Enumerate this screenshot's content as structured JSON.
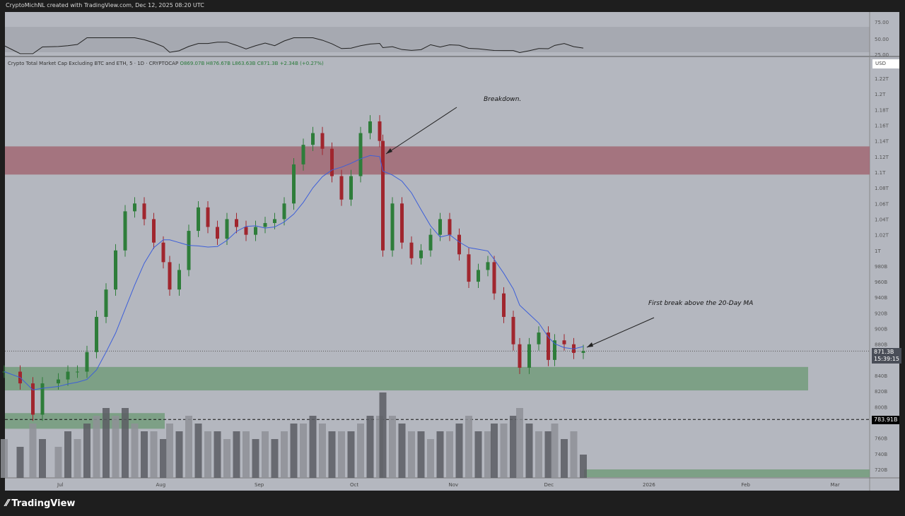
{
  "header": {
    "title": "CryptoMichNL created with TradingView.com, Dec 12, 2025 08:20 UTC"
  },
  "legend": {
    "symbol": "Crypto Total Market Cap Excluding BTC and ETH, 5 · 1D · CRYPTOCAP",
    "open": "O869.07B",
    "high": "H876.67B",
    "low": "L863.63B",
    "close": "C871.3B",
    "change": "+2.34B (+0.27%)"
  },
  "currency": "USD",
  "annotations": {
    "breakdown": "Breakdown.",
    "ma_break": "First break above the 20-Day MA"
  },
  "price_tags": {
    "last": "871.3B",
    "countdown": "15:39:15",
    "level": "783.91B"
  },
  "brand": "TradingView",
  "colors": {
    "bg": "#b4b7bf",
    "up": "#2e7d3a",
    "down": "#a0262e",
    "ma": "#3d5fd9",
    "resistance": "#a0636f",
    "support": "#6f9a78"
  },
  "chart_data": {
    "type": "candlestick",
    "yunit": "B",
    "ylim": [
      710,
      1230
    ],
    "y_ticks": [
      "1.22T",
      "1.2T",
      "1.18T",
      "1.16T",
      "1.14T",
      "1.12T",
      "1.1T",
      "1.08T",
      "1.06T",
      "1.04T",
      "1.02T",
      "1T",
      "980B",
      "960B",
      "940B",
      "920B",
      "900B",
      "880B",
      "840B",
      "820B",
      "800B",
      "760B",
      "740B",
      "720B"
    ],
    "y_tick_values": [
      1220,
      1200,
      1180,
      1160,
      1140,
      1120,
      1100,
      1080,
      1060,
      1040,
      1020,
      1000,
      980,
      960,
      940,
      920,
      900,
      880,
      840,
      820,
      800,
      760,
      740,
      720
    ],
    "rsi_ticks": [
      "75.00",
      "50.00",
      "25.00"
    ],
    "x_ticks": [
      "Jul",
      "Aug",
      "Sep",
      "Oct",
      "Nov",
      "Dec",
      "2026",
      "Feb",
      "Mar"
    ],
    "x_tick_dates": [
      "2025-07-01",
      "2025-08-01",
      "2025-09-01",
      "2025-10-01",
      "2025-11-01",
      "2025-12-01",
      "2026-01-01",
      "2026-02-01",
      "2026-03-01"
    ],
    "xlim": [
      "2025-06-13",
      "2026-03-12"
    ],
    "series": {
      "dates": [
        "2025-06-13",
        "2025-06-18",
        "2025-06-22",
        "2025-06-25",
        "2025-06-30",
        "2025-07-03",
        "2025-07-06",
        "2025-07-09",
        "2025-07-12",
        "2025-07-15",
        "2025-07-18",
        "2025-07-21",
        "2025-07-24",
        "2025-07-27",
        "2025-07-30",
        "2025-08-02",
        "2025-08-04",
        "2025-08-07",
        "2025-08-10",
        "2025-08-13",
        "2025-08-16",
        "2025-08-19",
        "2025-08-22",
        "2025-08-25",
        "2025-08-28",
        "2025-08-31",
        "2025-09-03",
        "2025-09-06",
        "2025-09-09",
        "2025-09-12",
        "2025-09-15",
        "2025-09-18",
        "2025-09-21",
        "2025-09-24",
        "2025-09-27",
        "2025-09-30",
        "2025-10-03",
        "2025-10-06",
        "2025-10-09",
        "2025-10-10",
        "2025-10-13",
        "2025-10-16",
        "2025-10-19",
        "2025-10-22",
        "2025-10-25",
        "2025-10-28",
        "2025-10-31",
        "2025-11-03",
        "2025-11-06",
        "2025-11-09",
        "2025-11-12",
        "2025-11-14",
        "2025-11-17",
        "2025-11-20",
        "2025-11-22",
        "2025-11-25",
        "2025-11-28",
        "2025-12-01",
        "2025-12-03",
        "2025-12-06",
        "2025-12-09",
        "2025-12-12"
      ],
      "close": [
        845,
        830,
        790,
        830,
        835,
        845,
        845,
        870,
        915,
        950,
        1000,
        1050,
        1060,
        1040,
        1010,
        985,
        950,
        975,
        1025,
        1055,
        1030,
        1015,
        1040,
        1030,
        1020,
        1030,
        1035,
        1040,
        1060,
        1110,
        1135,
        1150,
        1130,
        1095,
        1065,
        1095,
        1150,
        1165,
        1140,
        1000,
        1060,
        1010,
        990,
        1000,
        1020,
        1040,
        1020,
        995,
        960,
        975,
        985,
        945,
        915,
        880,
        850,
        880,
        895,
        860,
        885,
        880,
        869,
        871.3
      ],
      "volume": [
        5,
        4,
        7,
        5,
        4,
        6,
        5,
        7,
        8,
        9,
        8,
        9,
        7,
        6,
        6,
        5,
        7,
        6,
        8,
        7,
        6,
        6,
        5,
        6,
        6,
        5,
        6,
        5,
        6,
        7,
        7,
        8,
        7,
        6,
        6,
        6,
        7,
        8,
        8,
        11,
        8,
        7,
        6,
        6,
        5,
        6,
        6,
        7,
        8,
        6,
        6,
        7,
        7,
        8,
        9,
        7,
        6,
        6,
        7,
        5,
        6,
        3
      ]
    },
    "zones": [
      {
        "kind": "resistance",
        "from": 1097,
        "to": 1133
      },
      {
        "kind": "support",
        "from": 821,
        "to": 851
      },
      {
        "kind": "support",
        "from": 772,
        "to": 792
      },
      {
        "kind": "support",
        "from": 710,
        "to": 720
      }
    ],
    "lines": [
      {
        "value": 871.3,
        "style": "dotted"
      },
      {
        "value": 783.91,
        "style": "dashed"
      }
    ]
  }
}
